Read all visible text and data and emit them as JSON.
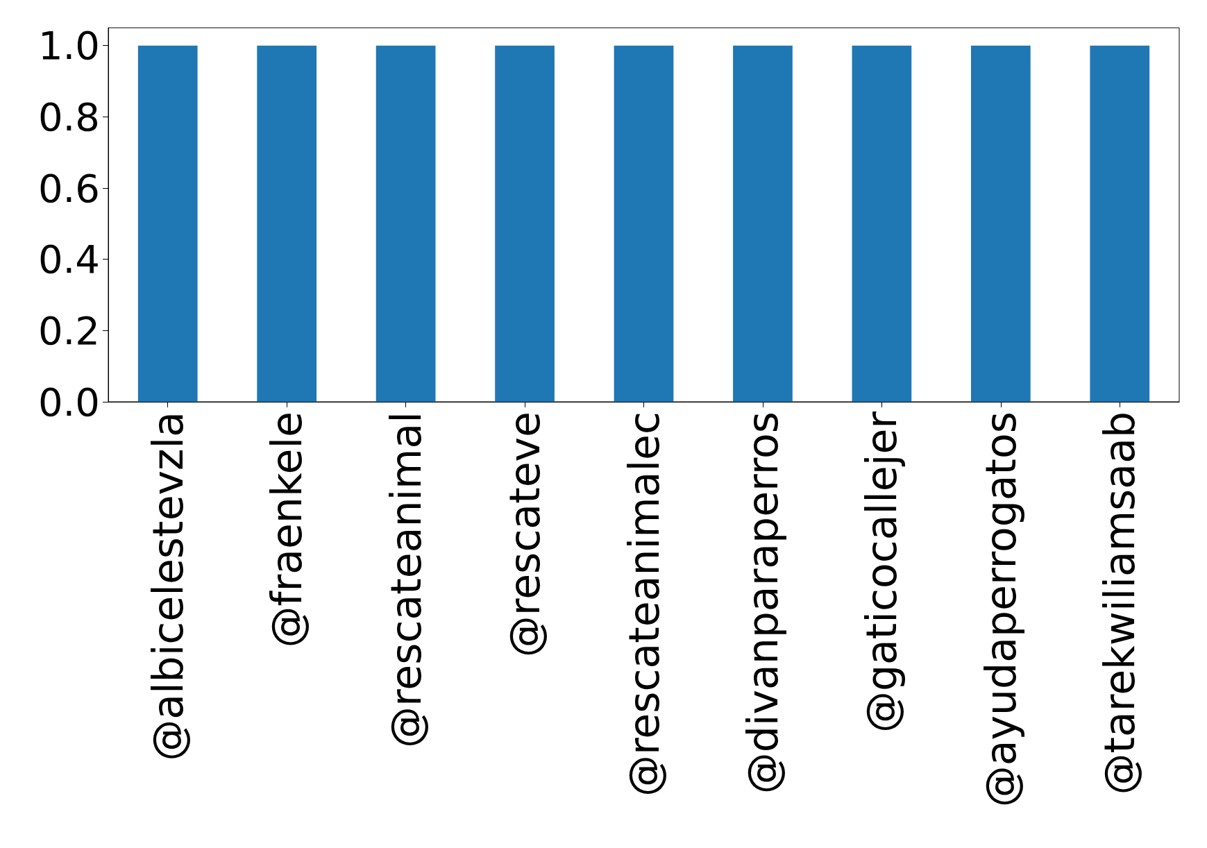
{
  "chart_data": {
    "type": "bar",
    "categories": [
      "@albicelestevzla",
      "@fraenkele",
      "@rescateanimal",
      "@rescateve",
      "@rescateanimalec",
      "@divanparaperros",
      "@gaticocallejer",
      "@ayudaperrogatos",
      "@tarekwiliamsaab"
    ],
    "values": [
      1,
      1,
      1,
      1,
      1,
      1,
      1,
      1,
      1
    ],
    "color": "#1f77b4",
    "ylim": [
      0,
      1.05
    ],
    "yticks": [
      {
        "value": 0,
        "label": "0.0"
      },
      {
        "value": 0.2,
        "label": "0.2"
      },
      {
        "value": 0.4,
        "label": "0.4"
      },
      {
        "value": 0.6,
        "label": "0.6"
      },
      {
        "value": 0.8,
        "label": "0.8"
      },
      {
        "value": 1,
        "label": "1.0"
      }
    ],
    "grid": false
  }
}
